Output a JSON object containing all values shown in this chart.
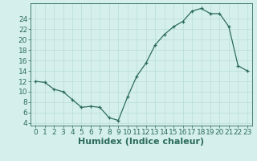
{
  "x": [
    0,
    1,
    2,
    3,
    4,
    5,
    6,
    7,
    8,
    9,
    10,
    11,
    12,
    13,
    14,
    15,
    16,
    17,
    18,
    19,
    20,
    21,
    22,
    23
  ],
  "y": [
    12,
    11.8,
    10.5,
    10,
    8.5,
    7,
    7.2,
    7,
    5,
    4.5,
    9,
    13,
    15.5,
    19,
    21,
    22.5,
    23.5,
    25.5,
    26,
    25,
    25,
    22.5,
    15,
    14
  ],
  "line_color": "#2d6b5e",
  "marker": "+",
  "bg_color": "#d5f0ec",
  "grid_color": "#b8dcd8",
  "xlabel": "Humidex (Indice chaleur)",
  "ylim": [
    3.5,
    27
  ],
  "xlim": [
    -0.5,
    23.5
  ],
  "yticks": [
    4,
    6,
    8,
    10,
    12,
    14,
    16,
    18,
    20,
    22,
    24
  ],
  "xticks": [
    0,
    1,
    2,
    3,
    4,
    5,
    6,
    7,
    8,
    9,
    10,
    11,
    12,
    13,
    14,
    15,
    16,
    17,
    18,
    19,
    20,
    21,
    22,
    23
  ],
  "font_color": "#2d6b5e",
  "tick_fontsize": 6.5,
  "xlabel_fontsize": 8
}
